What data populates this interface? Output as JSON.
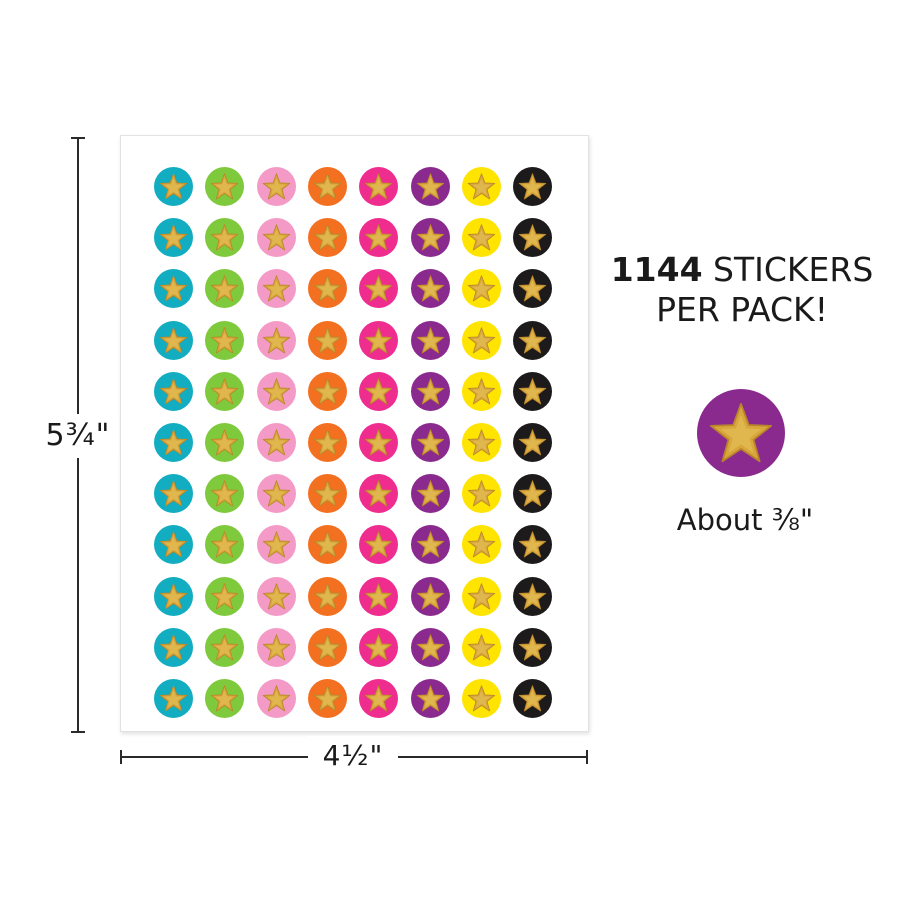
{
  "promo": {
    "count": "1144",
    "line1_rest": " STICKERS",
    "line2": "PER PACK!"
  },
  "dimensions": {
    "height": "5¾\"",
    "width": "4½\""
  },
  "size_note": "About ⅜\"",
  "sheet": {
    "rows": 11,
    "column_colors": [
      "#12adc1",
      "#7fc93d",
      "#f49ac6",
      "#f37021",
      "#ee2d8f",
      "#8b2a8e",
      "#ffe400",
      "#1c1a1a"
    ],
    "star_color": "#d8a63a",
    "star_icon": "glitter-star-icon"
  },
  "sample_sticker": {
    "color": "#8b2a8e",
    "star_icon": "glitter-star-icon"
  }
}
